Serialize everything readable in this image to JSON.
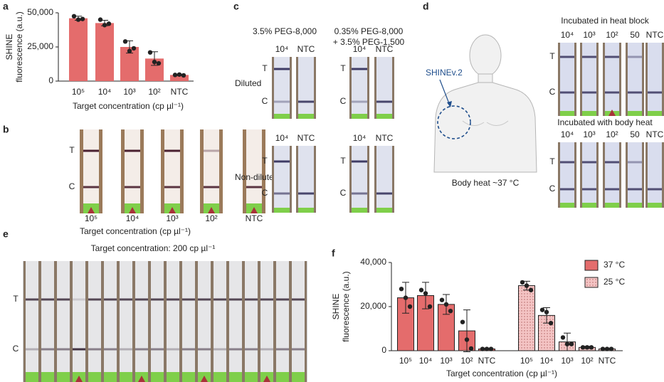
{
  "chart_data": [
    {
      "type": "bar",
      "ylabel": [
        "SHINE",
        "fluorescence (a.u.)"
      ],
      "xlabel": "Target concentration (cp µl⁻¹)",
      "categories": [
        "10⁵",
        "10⁴",
        "10³",
        "10²",
        "NTC"
      ],
      "values": [
        46000,
        42500,
        25000,
        16500,
        4500
      ],
      "errors": [
        1500,
        2000,
        4500,
        5000,
        500
      ],
      "points": [
        [
          47500,
          45000,
          45500
        ],
        [
          45000,
          41000,
          42000
        ],
        [
          29000,
          22000,
          24000
        ],
        [
          21000,
          14000,
          13000
        ],
        [
          4500,
          4800,
          4200
        ]
      ],
      "color": "#e46c6c",
      "ylim": [
        0,
        50000
      ],
      "yticks": [
        0,
        {
          "value": 25000,
          "label": "25,000"
        },
        {
          "value": 50000,
          "label": "50,000"
        }
      ]
    },
    {
      "type": "bar",
      "ylabel": [
        "SHINE",
        "fluorescence (a.u.)"
      ],
      "xlabel": "Target concentration (cp µl⁻¹)",
      "categories": [
        "10⁵",
        "10⁴",
        "10³",
        "10²",
        "NTC"
      ],
      "series": [
        {
          "name": "37 °C",
          "color": "#e46c6c",
          "pattern": "solid",
          "values": [
            24000,
            25000,
            21000,
            9000,
            800
          ],
          "errors": [
            7000,
            6000,
            4500,
            9500,
            300
          ],
          "points": [
            [
              28000,
              24000,
              20000
            ],
            [
              27500,
              26000,
              20000
            ],
            [
              23000,
              21000,
              18000
            ],
            [
              13000,
              5000,
              1000
            ],
            [
              800,
              800,
              800
            ]
          ]
        },
        {
          "name": "25 °C",
          "color": "#f4c4c4",
          "pattern": "dots",
          "values": [
            29500,
            16000,
            4000,
            1500,
            800
          ],
          "errors": [
            2000,
            3500,
            4000,
            500,
            300
          ],
          "points": [
            [
              31000,
              29500,
              27500
            ],
            [
              18500,
              17500,
              12500
            ],
            [
              6000,
              3000,
              3000
            ],
            [
              1500,
              1500,
              1500
            ],
            [
              800,
              800,
              800
            ]
          ]
        }
      ],
      "legend": "upper right",
      "ylim": [
        0,
        40000
      ],
      "yticks": [
        0,
        {
          "value": 20000,
          "label": "20,000"
        },
        {
          "value": 40000,
          "label": "40,000"
        }
      ]
    }
  ],
  "panel_labels": [
    "a",
    "b",
    "c",
    "d",
    "e",
    "f"
  ],
  "panel_b": {
    "strip_labels": [
      "10⁵",
      "10⁴",
      "10³",
      "10²",
      "NTC"
    ],
    "line_labels": [
      "T",
      "C"
    ],
    "xlabel": "Target concentration (cp µl⁻¹)"
  },
  "panel_c": {
    "column_titles": [
      "3.5% PEG-8,000",
      "0.35% PEG-8,000",
      "+ 3.5% PEG-1,500"
    ],
    "rows": [
      "Diluted",
      "Non-diluted"
    ],
    "strip_labels": [
      "10⁴",
      "NTC"
    ],
    "line_labels": [
      "T",
      "C"
    ]
  },
  "panel_d": {
    "callout": "SHINEv.2",
    "caption": "Body heat ~37 °C",
    "groups": [
      "Incubated in heat block",
      "Incubated with body heat"
    ],
    "strip_labels": [
      "10⁴",
      "10³",
      "10²",
      "50",
      "NTC"
    ],
    "line_labels": [
      "T",
      "C"
    ]
  },
  "panel_e": {
    "title": "Target concentration: 200 cp µl⁻¹",
    "line_labels": [
      "T",
      "C"
    ]
  }
}
